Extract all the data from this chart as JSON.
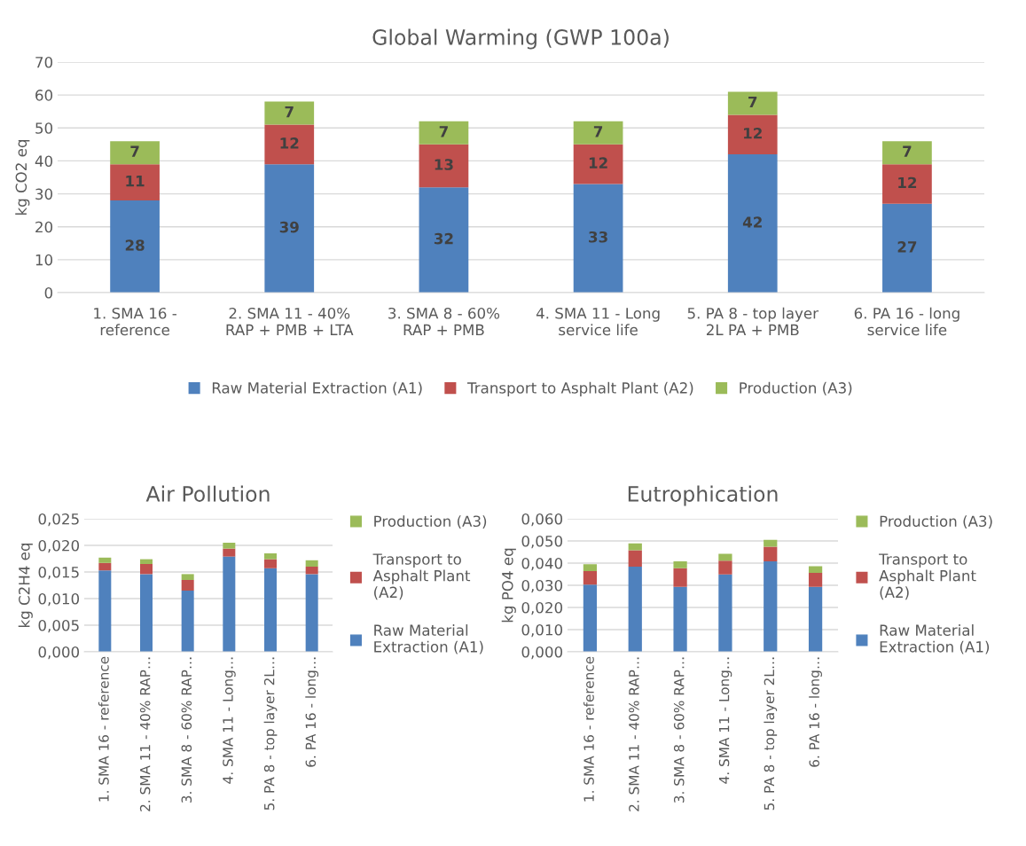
{
  "chart_data": [
    {
      "type": "bar",
      "stacked": true,
      "title": "Global Warming (GWP 100a)",
      "ylabel": "kg CO2 eq",
      "categories": [
        "1. SMA 16 -\nreference",
        "2. SMA 11 - 40%\nRAP + PMB + LTA",
        "3. SMA 8 - 60%\nRAP + PMB",
        "4. SMA 11 - Long\nservice life",
        "5. PA 8 - top layer\n2L PA + PMB",
        "6. PA 16 - long\nservice life"
      ],
      "series": [
        {
          "name": "Raw Material Extraction (A1)",
          "color": "#4f81bd",
          "values": [
            28,
            39,
            32,
            33,
            42,
            27
          ]
        },
        {
          "name": "Transport to Asphalt Plant (A2)",
          "color": "#c0504d",
          "values": [
            11,
            12,
            13,
            12,
            12,
            12
          ]
        },
        {
          "name": "Production (A3)",
          "color": "#9bbb59",
          "values": [
            7,
            7,
            7,
            7,
            7,
            7
          ]
        }
      ],
      "ylim": [
        0,
        70
      ],
      "yticks": [
        0,
        10,
        20,
        30,
        40,
        50,
        60,
        70
      ],
      "grid": "y",
      "legend": "bottom",
      "data_labels": true
    },
    {
      "type": "bar",
      "stacked": true,
      "title": "Air Pollution",
      "ylabel": "kg C2H4 eq",
      "categories": [
        "1. SMA 16 - reference",
        "2. SMA 11 - 40% RAP…",
        "3. SMA 8 - 60% RAP…",
        "4. SMA 11 - Long…",
        "5. PA 8 - top layer 2L…",
        "6. PA 16 - long…"
      ],
      "series": [
        {
          "name": "Raw Material\nExtraction (A1)",
          "color": "#4f81bd",
          "values": [
            0.0153,
            0.0146,
            0.0115,
            0.0179,
            0.0157,
            0.0146
          ]
        },
        {
          "name": "Transport to\nAsphalt Plant\n(A2)",
          "color": "#c0504d",
          "values": [
            0.0014,
            0.0019,
            0.002,
            0.0015,
            0.0017,
            0.0014
          ]
        },
        {
          "name": "Production (A3)",
          "color": "#9bbb59",
          "values": [
            0.001,
            0.0009,
            0.0011,
            0.0011,
            0.0011,
            0.0012
          ]
        }
      ],
      "ylim": [
        0,
        0.025
      ],
      "yticks": [
        {
          "value": 0,
          "label": "0,000"
        },
        {
          "value": 0.005,
          "label": "0,005"
        },
        {
          "value": 0.01,
          "label": "0,010"
        },
        {
          "value": 0.015,
          "label": "0,015"
        },
        {
          "value": 0.02,
          "label": "0,020"
        },
        {
          "value": 0.025,
          "label": "0,025"
        }
      ],
      "grid": "y",
      "legend": "right"
    },
    {
      "type": "bar",
      "stacked": true,
      "title": "Eutrophication",
      "ylabel": "kg PO4 eq",
      "categories": [
        "1. SMA 16 - reference",
        "2. SMA 11 - 40% RAP…",
        "3. SMA 8 - 60% RAP…",
        "4. SMA 11 - Long…",
        "5. PA 8 - top layer 2L…",
        "6. PA 16 - long…"
      ],
      "series": [
        {
          "name": "Raw Material\nExtraction (A1)",
          "color": "#4f81bd",
          "values": [
            0.0303,
            0.0384,
            0.0293,
            0.0349,
            0.0408,
            0.0293
          ]
        },
        {
          "name": "Transport to\nAsphalt Plant\n(A2)",
          "color": "#c0504d",
          "values": [
            0.0061,
            0.0074,
            0.0084,
            0.0062,
            0.0066,
            0.0063
          ]
        },
        {
          "name": "Production (A3)",
          "color": "#9bbb59",
          "values": [
            0.0031,
            0.0031,
            0.0031,
            0.0031,
            0.0031,
            0.003
          ]
        }
      ],
      "ylim": [
        0,
        0.06
      ],
      "yticks": [
        {
          "value": 0,
          "label": "0,000"
        },
        {
          "value": 0.01,
          "label": "0,010"
        },
        {
          "value": 0.02,
          "label": "0,020"
        },
        {
          "value": 0.03,
          "label": "0,030"
        },
        {
          "value": 0.04,
          "label": "0,040"
        },
        {
          "value": 0.05,
          "label": "0,050"
        },
        {
          "value": 0.06,
          "label": "0,060"
        }
      ],
      "grid": "y",
      "legend": "right"
    }
  ]
}
